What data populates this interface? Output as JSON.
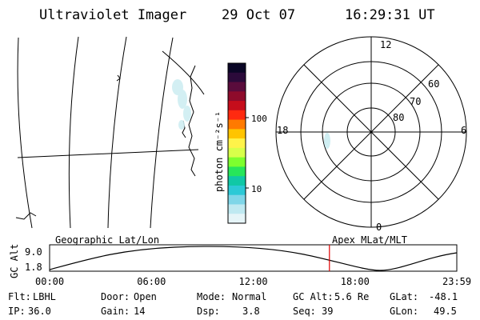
{
  "header": {
    "instrument": "Ultraviolet Imager",
    "date": "29 Oct 07",
    "time": "16:29:31 UT"
  },
  "colorbar": {
    "unit_label": "photon cm⁻²s⁻¹",
    "tick_labels": [
      "100",
      "10"
    ],
    "colors": [
      "#0a0626",
      "#2b0a3a",
      "#5a0c3c",
      "#8e0b2b",
      "#c60d1b",
      "#ff2a10",
      "#ff7a00",
      "#ffc400",
      "#fff34a",
      "#d8ff4a",
      "#7dff2e",
      "#27e65a",
      "#10c8a6",
      "#2cc9d6",
      "#7fd6e8",
      "#bfe9f1",
      "#e6f5f8"
    ]
  },
  "polar_plot": {
    "mlt_labels": {
      "top": "12",
      "right": "6",
      "bottom": "0",
      "left": "18"
    },
    "lat_labels": [
      "60",
      "70",
      "80"
    ]
  },
  "timeline": {
    "ylabel": "GC Alt",
    "ymax_label": "9.0",
    "ymin_label": "1.8",
    "left_title": "Geographic Lat/Lon",
    "right_title": "Apex MLat/MLT",
    "time_ticks": [
      "00:00",
      "06:00",
      "12:00",
      "18:00",
      "23:59"
    ],
    "current_fraction_of_day": 0.6872,
    "accent_color": "#e00000"
  },
  "status": {
    "flt": {
      "label": "Flt:",
      "value": "LBHL"
    },
    "ip": {
      "label": "IP:",
      "value": "36.0"
    },
    "door": {
      "label": "Door:",
      "value": "Open"
    },
    "gain": {
      "label": "Gain:",
      "value": "14"
    },
    "mode": {
      "label": "Mode:",
      "value": "Normal"
    },
    "dsp": {
      "label": "Dsp:",
      "value": "3.8"
    },
    "gcalt": {
      "label": "GC Alt:",
      "value": "5.6 Re"
    },
    "seq": {
      "label": "Seq:",
      "value": "39"
    },
    "glat": {
      "label": "GLat:",
      "value": "-48.1"
    },
    "glon": {
      "label": "GLon:",
      "value": "49.5"
    }
  }
}
